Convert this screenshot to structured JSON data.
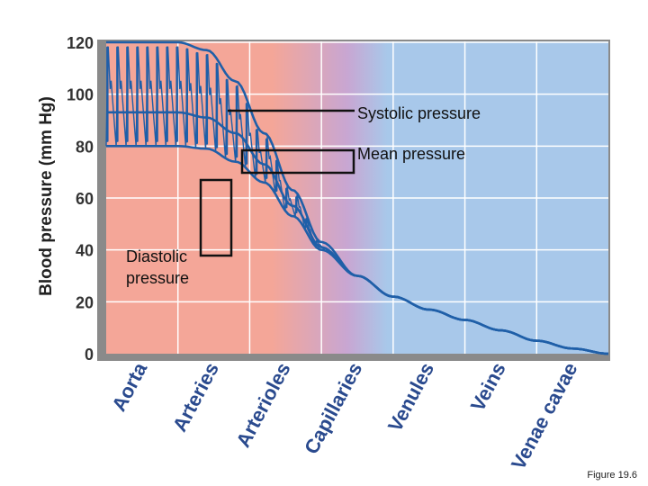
{
  "chart_data": {
    "type": "line",
    "title": "",
    "ylabel": "Blood pressure (mm Hg)",
    "xlabel": "",
    "ylim": [
      0,
      120
    ],
    "yticks": [
      0,
      20,
      40,
      60,
      80,
      100,
      120
    ],
    "categories": [
      "Aorta",
      "Arteries",
      "Arterioles",
      "Capillaries",
      "Venules",
      "Veins",
      "Venae cavae"
    ],
    "series": [
      {
        "name": "Systolic pressure",
        "x": [
          0,
          1.0,
          1.4,
          1.8,
          2.2,
          2.6,
          3.0,
          3.5,
          4.0,
          4.5,
          5.0,
          5.5,
          6.0,
          6.5,
          7.0
        ],
        "values": [
          120,
          120,
          117,
          105,
          85,
          63,
          43,
          30,
          22,
          17,
          13,
          9,
          5,
          2,
          0
        ]
      },
      {
        "name": "Mean pressure",
        "x": [
          0,
          1.0,
          1.4,
          1.8,
          2.2,
          2.6,
          3.0,
          3.5,
          4.0,
          4.5,
          5.0,
          5.5,
          6.0,
          6.5,
          7.0
        ],
        "values": [
          93,
          93,
          91,
          85,
          73,
          57,
          41,
          30,
          22,
          17,
          13,
          9,
          5,
          2,
          0
        ]
      },
      {
        "name": "Diastolic pressure",
        "x": [
          0,
          1.0,
          1.4,
          1.8,
          2.2,
          2.6,
          3.0,
          3.5,
          4.0,
          4.5,
          5.0,
          5.5,
          6.0,
          6.5,
          7.0
        ],
        "values": [
          80,
          80,
          79,
          74,
          66,
          53,
          40,
          30,
          22,
          17,
          13,
          9,
          5,
          2,
          0
        ]
      }
    ],
    "annotations": {
      "systolic": "Systolic pressure",
      "mean": "Mean pressure",
      "diastolic_1": "Diastolic",
      "diastolic_2": "pressure"
    },
    "grid": true,
    "colors": {
      "artery_band": "#f4a698",
      "vein_band": "#a8c8ea",
      "capillary_band": "#c8a6d2",
      "line": "#1f5fa8",
      "grid": "#ffffff"
    }
  },
  "caption": "Figure 19.6"
}
